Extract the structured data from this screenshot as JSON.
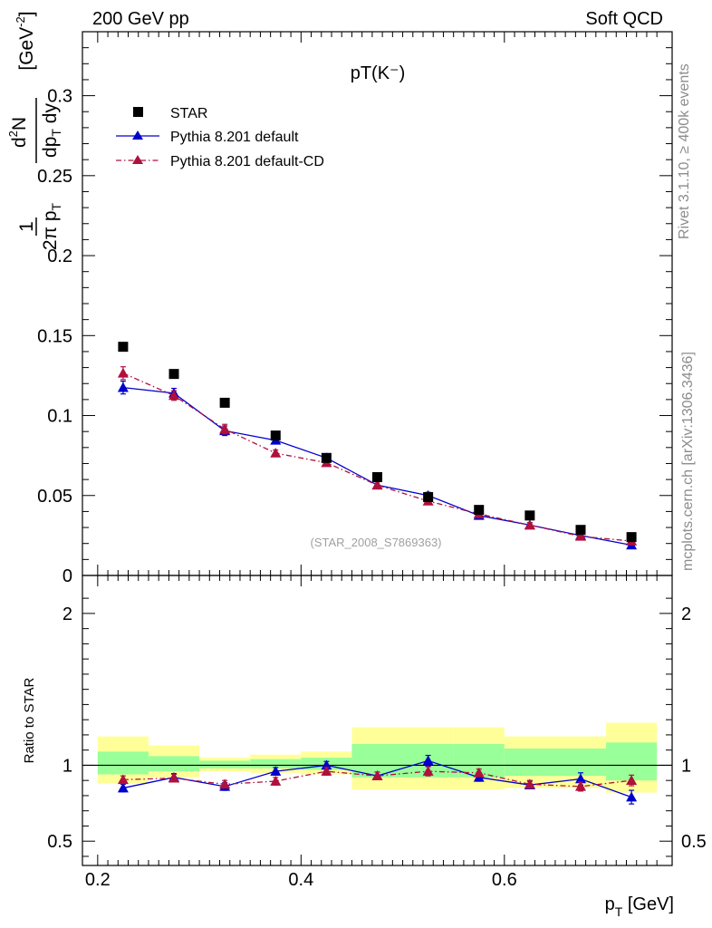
{
  "header": {
    "left": "200 GeV pp",
    "right": "Soft QCD"
  },
  "side_text": {
    "rivet": "Rivet 3.1.10, ≥ 400k events",
    "mcplots": "mcplots.cern.ch [arXiv:1306.3436]"
  },
  "ratio_ylabel": "Ratio to STAR",
  "chart_data": {
    "type": "scatter",
    "title": "pT(K⁻)",
    "reference_label": "(STAR_2008_S7869363)",
    "xlabel": "p_T [GeV]",
    "ylabel": "1/(2π p_T) d²N/(dp_T dy) [GeV⁻²]",
    "xlim": [
      0.185,
      0.765
    ],
    "main_ylim": [
      0,
      0.34
    ],
    "ratio_ylim": [
      0.34,
      2.25
    ],
    "x_ticks": [
      "0.2",
      "0.4",
      "0.6"
    ],
    "main_y_ticks": [
      "0",
      "0.05",
      "0.1",
      "0.15",
      "0.2",
      "0.25",
      "0.3"
    ],
    "ratio_y_ticks": [
      "0.5",
      "1",
      "2"
    ],
    "legend_position": "top-left",
    "x": [
      0.225,
      0.275,
      0.325,
      0.375,
      0.425,
      0.475,
      0.525,
      0.575,
      0.625,
      0.675,
      0.725
    ],
    "series": [
      {
        "name": "STAR",
        "color": "#000000",
        "marker": "square",
        "values": [
          0.143,
          0.126,
          0.108,
          0.0875,
          0.0735,
          0.0615,
          0.049,
          0.041,
          0.0375,
          0.0285,
          0.024
        ]
      },
      {
        "name": "Pythia 8.201 default",
        "color": "#0000cc",
        "marker": "triangle",
        "line": "solid",
        "values": [
          0.1175,
          0.114,
          0.0905,
          0.0845,
          0.0735,
          0.0565,
          0.05,
          0.0375,
          0.0315,
          0.025,
          0.019
        ],
        "errors": [
          0.004,
          0.003,
          0.003,
          0.002,
          0.002,
          0.002,
          0.002,
          0.0015,
          0.0015,
          0.0015,
          0.0012
        ],
        "ratio": [
          0.85,
          0.92,
          0.86,
          0.96,
          1.0,
          0.93,
          1.03,
          0.92,
          0.87,
          0.91,
          0.79
        ],
        "ratio_errors": [
          0.025,
          0.025,
          0.025,
          0.025,
          0.025,
          0.025,
          0.035,
          0.025,
          0.025,
          0.04,
          0.045
        ]
      },
      {
        "name": "Pythia 8.201 default-CD",
        "color": "#b0103c",
        "marker": "triangle",
        "line": "dashdot",
        "values": [
          0.1265,
          0.1125,
          0.0915,
          0.0765,
          0.0705,
          0.0565,
          0.0465,
          0.0385,
          0.0315,
          0.0245,
          0.0215
        ],
        "errors": [
          0.004,
          0.003,
          0.003,
          0.002,
          0.002,
          0.002,
          0.002,
          0.0015,
          0.0015,
          0.0015,
          0.0012
        ],
        "ratio": [
          0.905,
          0.915,
          0.875,
          0.895,
          0.96,
          0.93,
          0.96,
          0.95,
          0.875,
          0.86,
          0.9
        ],
        "ratio_errors": [
          0.025,
          0.025,
          0.025,
          0.025,
          0.025,
          0.025,
          0.03,
          0.025,
          0.025,
          0.03,
          0.035
        ]
      }
    ],
    "ratio_bands": [
      {
        "x0": 0.2,
        "x1": 0.25,
        "yellow": [
          0.88,
          1.19
        ],
        "green": [
          0.94,
          1.09
        ]
      },
      {
        "x0": 0.25,
        "x1": 0.3,
        "yellow": [
          0.92,
          1.13
        ],
        "green": [
          0.96,
          1.06
        ]
      },
      {
        "x0": 0.3,
        "x1": 0.35,
        "yellow": [
          0.96,
          1.05
        ],
        "green": [
          0.98,
          1.03
        ]
      },
      {
        "x0": 0.35,
        "x1": 0.4,
        "yellow": [
          0.95,
          1.07
        ],
        "green": [
          0.98,
          1.04
        ]
      },
      {
        "x0": 0.4,
        "x1": 0.45,
        "yellow": [
          0.94,
          1.09
        ],
        "green": [
          0.97,
          1.05
        ]
      },
      {
        "x0": 0.45,
        "x1": 0.55,
        "yellow": [
          0.84,
          1.25
        ],
        "green": [
          0.92,
          1.14
        ]
      },
      {
        "x0": 0.55,
        "x1": 0.6,
        "yellow": [
          0.84,
          1.25
        ],
        "green": [
          0.92,
          1.14
        ]
      },
      {
        "x0": 0.6,
        "x1": 0.7,
        "yellow": [
          0.85,
          1.19
        ],
        "green": [
          0.93,
          1.11
        ]
      },
      {
        "x0": 0.7,
        "x1": 0.75,
        "yellow": [
          0.82,
          1.28
        ],
        "green": [
          0.9,
          1.15
        ]
      }
    ]
  }
}
